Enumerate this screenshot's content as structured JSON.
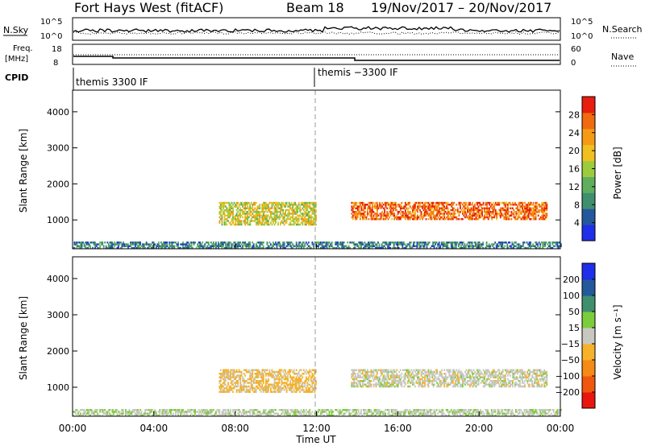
{
  "header": {
    "station": "Fort Hays West (fitACF)",
    "beam": "Beam 18",
    "date_range": "19/Nov/2017 – 20/Nov/2017"
  },
  "top_panels": {
    "nsky_label": "N.Sky",
    "nsky_ticks": [
      "10^5",
      "10^0"
    ],
    "nsearch_label": "N.Search",
    "nsearch_ticks": [
      "10^5",
      "10^0"
    ],
    "freq_label": "Freq.",
    "freq_unit": "[MHz]",
    "freq_ticks": [
      "18",
      "8"
    ],
    "nave_label": "Nave",
    "nave_ticks": [
      "60",
      "0"
    ],
    "cpid_label": "CPID",
    "cpid_segments": [
      "themis 3300 IF",
      "themis −3300 IF"
    ]
  },
  "chart_data": [
    {
      "type": "heatmap",
      "name": "power",
      "ylabel": "Slant Range [km]",
      "xlabel": "",
      "ylim": [
        200,
        4600
      ],
      "y_ticks": [
        "1000",
        "2000",
        "3000",
        "4000"
      ],
      "colorbar_label": "Power [dB]",
      "colorbar_ticks": [
        "4",
        "8",
        "12",
        "16",
        "20",
        "24",
        "28"
      ],
      "colorbar_range": [
        0,
        32
      ],
      "colors": [
        "#1f2ee8",
        "#23599c",
        "#3f8f6e",
        "#5fae5e",
        "#9ccc3c",
        "#f0c020",
        "#f59a15",
        "#f06a10",
        "#e81e0e"
      ],
      "regions": [
        {
          "desc": "main band",
          "x": [
            13.7,
            23.3
          ],
          "y": [
            1000,
            1500
          ],
          "power": 26
        },
        {
          "desc": "evening band",
          "x": [
            7.2,
            12.0
          ],
          "y": [
            850,
            1500
          ],
          "power": 18
        },
        {
          "desc": "near range",
          "x": [
            0.0,
            24.0
          ],
          "y": [
            200,
            400
          ],
          "power": 8
        }
      ]
    },
    {
      "type": "heatmap",
      "name": "velocity",
      "ylabel": "Slant Range [km]",
      "xlabel": "Time UT",
      "x_ticks": [
        "00:00",
        "04:00",
        "08:00",
        "12:00",
        "16:00",
        "20:00",
        "00:00"
      ],
      "ylim": [
        200,
        4600
      ],
      "y_ticks": [
        "1000",
        "2000",
        "3000",
        "4000"
      ],
      "colorbar_label": "Velocity [m s⁻¹]",
      "colorbar_ticks": [
        "200",
        "100",
        "50",
        "15",
        "−15",
        "−50",
        "−100",
        "−200"
      ],
      "colorbar_range": [
        -250,
        250
      ],
      "colors": [
        "#e8160e",
        "#f0560e",
        "#f58a16",
        "#f5b22a",
        "#c8c8c0",
        "#7ccd3c",
        "#3f8f6e",
        "#23599c",
        "#1f2ee8"
      ],
      "regions": [
        {
          "desc": "main band",
          "x": [
            13.7,
            23.3
          ],
          "y": [
            1000,
            1500
          ],
          "velocity": 0
        },
        {
          "desc": "evening band",
          "x": [
            7.2,
            12.0
          ],
          "y": [
            850,
            1500
          ],
          "velocity": -40
        },
        {
          "desc": "near range",
          "x": [
            0.0,
            24.0
          ],
          "y": [
            200,
            400
          ],
          "velocity": 15
        }
      ]
    }
  ]
}
